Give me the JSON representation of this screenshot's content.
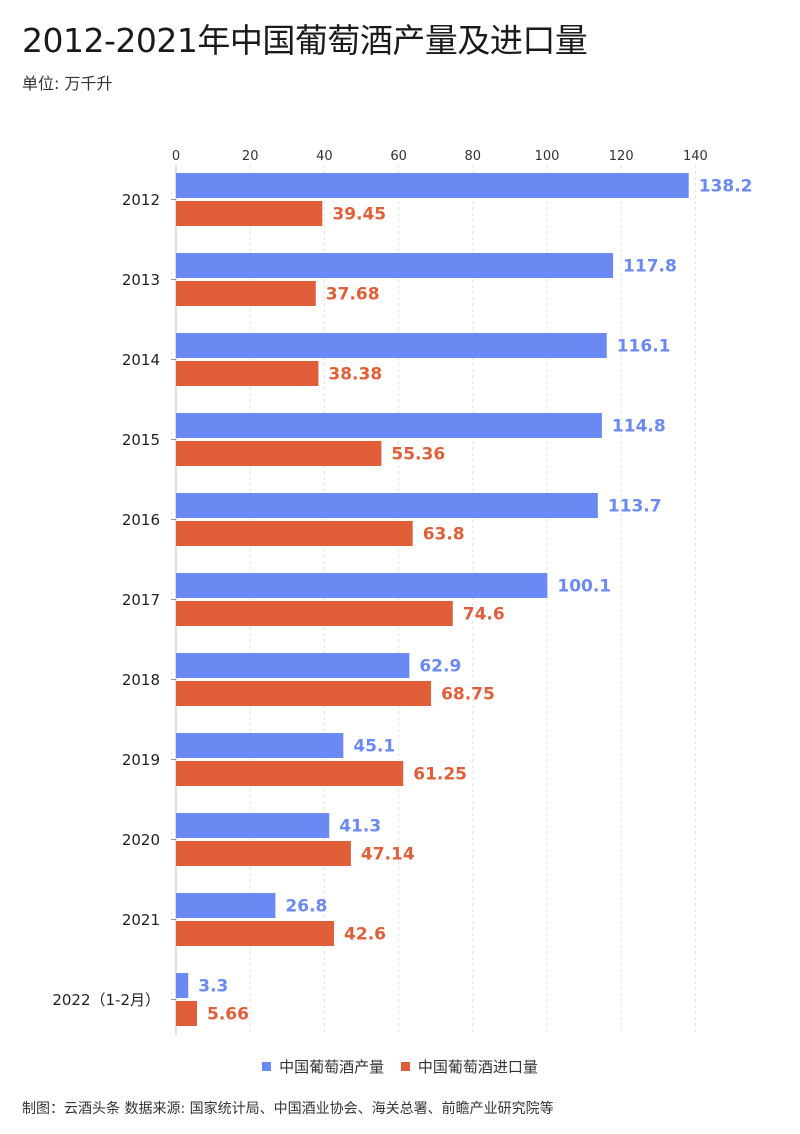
{
  "header": {
    "title": "2012-2021年中国葡萄酒产量及进口量",
    "unit": "单位: 万千升"
  },
  "footer": {
    "credit": "制图：云酒头条     数据来源: 国家统计局、中国酒业协会、海关总署、前瞻产业研究院等"
  },
  "colors": {
    "production": "#6b89f2",
    "import": "#e05f38"
  },
  "chart_data": {
    "type": "bar",
    "orientation": "horizontal",
    "title": "2012-2021年中国葡萄酒产量及进口量",
    "subtitle": "单位: 万千升",
    "categories": [
      "2012",
      "2013",
      "2014",
      "2015",
      "2016",
      "2017",
      "2018",
      "2019",
      "2020",
      "2021",
      "2022（1-2月）"
    ],
    "series": [
      {
        "name": "中国葡萄酒产量",
        "color": "#6b89f2",
        "values": [
          138.2,
          117.8,
          116.1,
          114.8,
          113.7,
          100.1,
          62.9,
          45.1,
          41.3,
          26.8,
          3.3
        ]
      },
      {
        "name": "中国葡萄酒进口量",
        "color": "#e05f38",
        "values": [
          39.45,
          37.68,
          38.38,
          55.36,
          63.8,
          74.6,
          68.75,
          61.25,
          47.14,
          42.6,
          5.66
        ]
      }
    ],
    "value_labels": [
      [
        "138.2",
        "117.8",
        "116.1",
        "114.8",
        "113.7",
        "100.1",
        "62.9",
        "45.1",
        "41.3",
        "26.8",
        "3.3"
      ],
      [
        "39.45",
        "37.68",
        "38.38",
        "55.36",
        "63.8",
        "74.6",
        "68.75",
        "61.25",
        "47.14",
        "42.6",
        "5.66"
      ]
    ],
    "x_ticks": [
      "0",
      "20",
      "40",
      "60",
      "80",
      "100",
      "120",
      "140"
    ],
    "xlim": [
      0,
      140
    ],
    "x_axis_position": "top",
    "grid": true,
    "legend_position": "bottom-center"
  }
}
